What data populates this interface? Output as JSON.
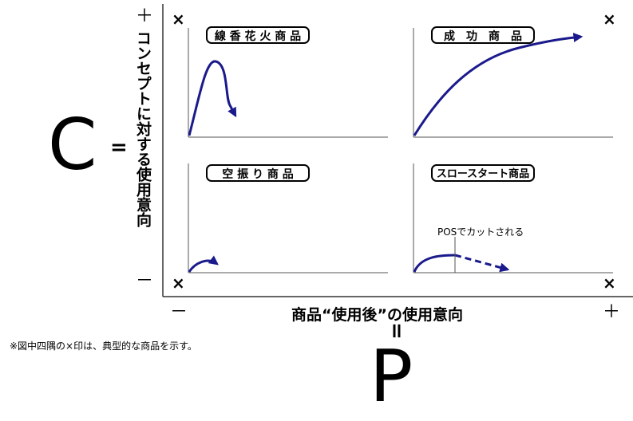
{
  "axes": {
    "c_letter": "C",
    "c_equals": "=",
    "c_axis_label": "コンセプトに対する使用意向",
    "c_plus": "＋",
    "c_minus": "－",
    "p_letter": "P",
    "p_equals": "=",
    "p_axis_label": "商品“使用後”の使用意向",
    "p_plus": "＋",
    "p_minus": "－"
  },
  "corners": {
    "mark": "×"
  },
  "quadrants": {
    "top_left": {
      "label": "線 香 花 火 商 品"
    },
    "top_right": {
      "label": "成　功　商　品"
    },
    "bottom_left": {
      "label": "空 振 り 商 品"
    },
    "bottom_right": {
      "label": "スロースタート商品",
      "annotation": "POSでカットされる"
    }
  },
  "footnote": "※図中四隅の×印は、典型的な商品を示す。",
  "colors": {
    "curve": "#1a1a8c",
    "axis": "#333333"
  }
}
